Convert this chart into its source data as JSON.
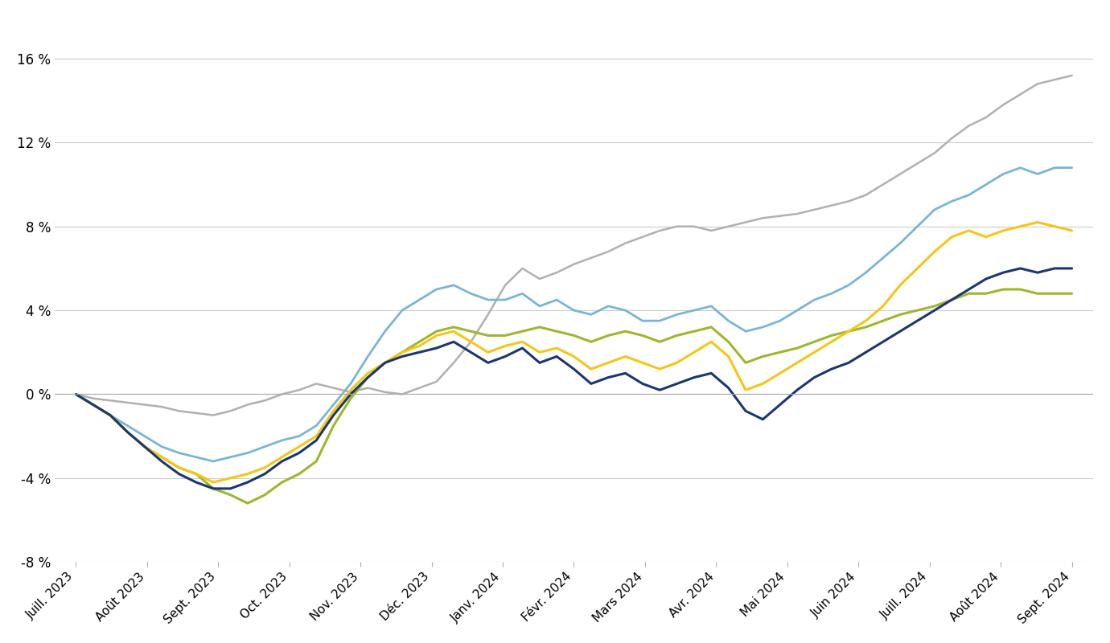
{
  "ylim": [
    -8,
    18
  ],
  "yticks": [
    -8,
    -4,
    0,
    4,
    8,
    12,
    16
  ],
  "ytick_labels": [
    "-8 %",
    "-4 %",
    "0 %",
    "4 %",
    "8 %",
    "12 %",
    "16 %"
  ],
  "x_labels": [
    "Juill. 2023",
    "Août 2023",
    "Sept. 2023",
    "Oct. 2023",
    "Nov. 2023",
    "Déc. 2023",
    "Janv. 2024",
    "Févr. 2024",
    "Mars 2024",
    "Avr. 2024",
    "Mai 2024",
    "Juin 2024",
    "Juill. 2024",
    "Août 2024",
    "Sept. 2024"
  ],
  "background_color": "#ffffff",
  "grid_color": "#cccccc",
  "series": {
    "gray": {
      "color": "#b0b0b0",
      "linewidth": 1.8,
      "data": [
        0.0,
        -0.2,
        -0.3,
        -0.4,
        -0.5,
        -0.6,
        -0.8,
        -0.9,
        -1.0,
        -0.8,
        -0.5,
        -0.3,
        0.0,
        0.2,
        0.5,
        0.3,
        0.1,
        0.3,
        0.1,
        0.0,
        0.3,
        0.6,
        1.5,
        2.5,
        3.8,
        5.2,
        6.0,
        5.5,
        5.8,
        6.2,
        6.5,
        6.8,
        7.2,
        7.5,
        7.8,
        8.0,
        8.0,
        7.8,
        8.0,
        8.2,
        8.4,
        8.5,
        8.6,
        8.8,
        9.0,
        9.2,
        9.5,
        10.0,
        10.5,
        11.0,
        11.5,
        12.2,
        12.8,
        13.2,
        13.8,
        14.3,
        14.8,
        15.0,
        15.2
      ]
    },
    "light_blue": {
      "color": "#7ab5d4",
      "linewidth": 2.0,
      "data": [
        0.0,
        -0.5,
        -1.0,
        -1.5,
        -2.0,
        -2.5,
        -2.8,
        -3.0,
        -3.2,
        -3.0,
        -2.8,
        -2.5,
        -2.2,
        -2.0,
        -1.5,
        -0.5,
        0.5,
        1.8,
        3.0,
        4.0,
        4.5,
        5.0,
        5.2,
        4.8,
        4.5,
        4.5,
        4.8,
        4.2,
        4.5,
        4.0,
        3.8,
        4.2,
        4.0,
        3.5,
        3.5,
        3.8,
        4.0,
        4.2,
        3.5,
        3.0,
        3.2,
        3.5,
        4.0,
        4.5,
        4.8,
        5.2,
        5.8,
        6.5,
        7.2,
        8.0,
        8.8,
        9.2,
        9.5,
        10.0,
        10.5,
        10.8,
        10.5,
        10.8,
        10.8
      ]
    },
    "dark_blue": {
      "color": "#1a3770",
      "linewidth": 2.2,
      "data": [
        0.0,
        -0.5,
        -1.0,
        -1.8,
        -2.5,
        -3.2,
        -3.8,
        -4.2,
        -4.5,
        -4.5,
        -4.2,
        -3.8,
        -3.2,
        -2.8,
        -2.2,
        -1.0,
        0.0,
        0.8,
        1.5,
        1.8,
        2.0,
        2.2,
        2.5,
        2.0,
        1.5,
        1.8,
        2.2,
        1.5,
        1.8,
        1.2,
        0.5,
        0.8,
        1.0,
        0.5,
        0.2,
        0.5,
        0.8,
        1.0,
        0.3,
        -0.8,
        -1.2,
        -0.5,
        0.2,
        0.8,
        1.2,
        1.5,
        2.0,
        2.5,
        3.0,
        3.5,
        4.0,
        4.5,
        5.0,
        5.5,
        5.8,
        6.0,
        5.8,
        6.0,
        6.0
      ]
    },
    "yellow": {
      "color": "#f5c518",
      "linewidth": 2.2,
      "data": [
        0.0,
        -0.5,
        -1.0,
        -1.8,
        -2.5,
        -3.0,
        -3.5,
        -3.8,
        -4.2,
        -4.0,
        -3.8,
        -3.5,
        -3.0,
        -2.5,
        -2.0,
        -0.8,
        0.2,
        1.0,
        1.5,
        2.0,
        2.3,
        2.8,
        3.0,
        2.5,
        2.0,
        2.3,
        2.5,
        2.0,
        2.2,
        1.8,
        1.2,
        1.5,
        1.8,
        1.5,
        1.2,
        1.5,
        2.0,
        2.5,
        1.8,
        0.2,
        0.5,
        1.0,
        1.5,
        2.0,
        2.5,
        3.0,
        3.5,
        4.2,
        5.2,
        6.0,
        6.8,
        7.5,
        7.8,
        7.5,
        7.8,
        8.0,
        8.2,
        8.0,
        7.8
      ]
    },
    "olive": {
      "color": "#9cb82c",
      "linewidth": 2.2,
      "data": [
        0.0,
        -0.5,
        -1.0,
        -1.8,
        -2.5,
        -3.0,
        -3.5,
        -3.8,
        -4.5,
        -4.8,
        -5.2,
        -4.8,
        -4.2,
        -3.8,
        -3.2,
        -1.5,
        -0.2,
        0.8,
        1.5,
        2.0,
        2.5,
        3.0,
        3.2,
        3.0,
        2.8,
        2.8,
        3.0,
        3.2,
        3.0,
        2.8,
        2.5,
        2.8,
        3.0,
        2.8,
        2.5,
        2.8,
        3.0,
        3.2,
        2.5,
        1.5,
        1.8,
        2.0,
        2.2,
        2.5,
        2.8,
        3.0,
        3.2,
        3.5,
        3.8,
        4.0,
        4.2,
        4.5,
        4.8,
        4.8,
        5.0,
        5.0,
        4.8,
        4.8,
        4.8
      ]
    }
  }
}
